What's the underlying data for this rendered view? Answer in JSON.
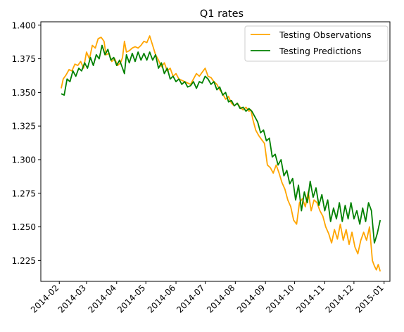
{
  "chart_data": {
    "type": "line",
    "title": "Q1 rates",
    "xlabel": "",
    "ylabel": "",
    "xlim": [
      "2014-01-13",
      "2015-01-07"
    ],
    "ylim": [
      1.2095,
      1.4025
    ],
    "x_ticks": [
      "2014-02",
      "2014-03",
      "2014-04",
      "2014-05",
      "2014-06",
      "2014-07",
      "2014-08",
      "2014-09",
      "2014-10",
      "2014-11",
      "2014-12",
      "2015-01"
    ],
    "y_ticks": [
      "1.225",
      "1.250",
      "1.275",
      "1.300",
      "1.325",
      "1.350",
      "1.375",
      "1.400"
    ],
    "grid": false,
    "legend_position": "top-right",
    "series": [
      {
        "name": "Testing Observations",
        "color": "#ffa500",
        "points": [
          [
            "2014-02-03",
            1.353
          ],
          [
            "2014-02-05",
            1.36
          ],
          [
            "2014-02-08",
            1.363
          ],
          [
            "2014-02-11",
            1.367
          ],
          [
            "2014-02-14",
            1.366
          ],
          [
            "2014-02-17",
            1.371
          ],
          [
            "2014-02-20",
            1.37
          ],
          [
            "2014-02-23",
            1.373
          ],
          [
            "2014-02-26",
            1.368
          ],
          [
            "2014-03-01",
            1.38
          ],
          [
            "2014-03-04",
            1.375
          ],
          [
            "2014-03-07",
            1.385
          ],
          [
            "2014-03-10",
            1.383
          ],
          [
            "2014-03-13",
            1.39
          ],
          [
            "2014-03-16",
            1.391
          ],
          [
            "2014-03-19",
            1.388
          ],
          [
            "2014-03-21",
            1.378
          ],
          [
            "2014-03-24",
            1.379
          ],
          [
            "2014-03-27",
            1.373
          ],
          [
            "2014-03-30",
            1.375
          ],
          [
            "2014-04-02",
            1.37
          ],
          [
            "2014-04-05",
            1.372
          ],
          [
            "2014-04-07",
            1.376
          ],
          [
            "2014-04-09",
            1.388
          ],
          [
            "2014-04-11",
            1.38
          ],
          [
            "2014-04-14",
            1.381
          ],
          [
            "2014-04-17",
            1.383
          ],
          [
            "2014-04-20",
            1.384
          ],
          [
            "2014-04-23",
            1.383
          ],
          [
            "2014-04-26",
            1.385
          ],
          [
            "2014-04-29",
            1.388
          ],
          [
            "2014-05-02",
            1.387
          ],
          [
            "2014-05-05",
            1.392
          ],
          [
            "2014-05-08",
            1.385
          ],
          [
            "2014-05-11",
            1.378
          ],
          [
            "2014-05-14",
            1.374
          ],
          [
            "2014-05-17",
            1.369
          ],
          [
            "2014-05-20",
            1.372
          ],
          [
            "2014-05-23",
            1.366
          ],
          [
            "2014-05-26",
            1.368
          ],
          [
            "2014-05-29",
            1.362
          ],
          [
            "2014-06-01",
            1.364
          ],
          [
            "2014-06-04",
            1.36
          ],
          [
            "2014-06-07",
            1.359
          ],
          [
            "2014-06-10",
            1.358
          ],
          [
            "2014-06-13",
            1.357
          ],
          [
            "2014-06-16",
            1.356
          ],
          [
            "2014-06-19",
            1.36
          ],
          [
            "2014-06-22",
            1.364
          ],
          [
            "2014-06-25",
            1.362
          ],
          [
            "2014-06-28",
            1.365
          ],
          [
            "2014-07-01",
            1.368
          ],
          [
            "2014-07-04",
            1.362
          ],
          [
            "2014-07-07",
            1.361
          ],
          [
            "2014-07-10",
            1.358
          ],
          [
            "2014-07-13",
            1.356
          ],
          [
            "2014-07-16",
            1.352
          ],
          [
            "2014-07-19",
            1.349
          ],
          [
            "2014-07-22",
            1.345
          ],
          [
            "2014-07-25",
            1.347
          ],
          [
            "2014-07-28",
            1.342
          ],
          [
            "2014-07-31",
            1.34
          ],
          [
            "2014-08-03",
            1.342
          ],
          [
            "2014-08-06",
            1.339
          ],
          [
            "2014-08-09",
            1.337
          ],
          [
            "2014-08-12",
            1.339
          ],
          [
            "2014-08-15",
            1.336
          ],
          [
            "2014-08-17",
            1.337
          ],
          [
            "2014-08-19",
            1.33
          ],
          [
            "2014-08-22",
            1.322
          ],
          [
            "2014-08-25",
            1.318
          ],
          [
            "2014-08-28",
            1.315
          ],
          [
            "2014-08-31",
            1.312
          ],
          [
            "2014-09-03",
            1.296
          ],
          [
            "2014-09-06",
            1.294
          ],
          [
            "2014-09-09",
            1.29
          ],
          [
            "2014-09-12",
            1.296
          ],
          [
            "2014-09-15",
            1.29
          ],
          [
            "2014-09-18",
            1.283
          ],
          [
            "2014-09-21",
            1.278
          ],
          [
            "2014-09-24",
            1.27
          ],
          [
            "2014-09-27",
            1.265
          ],
          [
            "2014-09-30",
            1.255
          ],
          [
            "2014-10-03",
            1.252
          ],
          [
            "2014-10-06",
            1.268
          ],
          [
            "2014-10-09",
            1.271
          ],
          [
            "2014-10-12",
            1.265
          ],
          [
            "2014-10-15",
            1.276
          ],
          [
            "2014-10-18",
            1.262
          ],
          [
            "2014-10-21",
            1.27
          ],
          [
            "2014-10-24",
            1.268
          ],
          [
            "2014-10-27",
            1.262
          ],
          [
            "2014-10-30",
            1.258
          ],
          [
            "2014-11-02",
            1.25
          ],
          [
            "2014-11-05",
            1.245
          ],
          [
            "2014-11-08",
            1.238
          ],
          [
            "2014-11-11",
            1.248
          ],
          [
            "2014-11-14",
            1.241
          ],
          [
            "2014-11-17",
            1.252
          ],
          [
            "2014-11-20",
            1.24
          ],
          [
            "2014-11-23",
            1.248
          ],
          [
            "2014-11-26",
            1.237
          ],
          [
            "2014-11-29",
            1.246
          ],
          [
            "2014-12-02",
            1.235
          ],
          [
            "2014-12-05",
            1.23
          ],
          [
            "2014-12-08",
            1.24
          ],
          [
            "2014-12-11",
            1.246
          ],
          [
            "2014-12-14",
            1.24
          ],
          [
            "2014-12-17",
            1.25
          ],
          [
            "2014-12-20",
            1.225
          ],
          [
            "2014-12-22",
            1.221
          ],
          [
            "2014-12-24",
            1.218
          ],
          [
            "2014-12-26",
            1.222
          ],
          [
            "2014-12-28",
            1.217
          ]
        ]
      },
      {
        "name": "Testing Predictions",
        "color": "#008000",
        "points": [
          [
            "2014-02-03",
            1.349
          ],
          [
            "2014-02-06",
            1.348
          ],
          [
            "2014-02-09",
            1.36
          ],
          [
            "2014-02-12",
            1.358
          ],
          [
            "2014-02-15",
            1.366
          ],
          [
            "2014-02-18",
            1.362
          ],
          [
            "2014-02-21",
            1.368
          ],
          [
            "2014-02-24",
            1.366
          ],
          [
            "2014-02-27",
            1.372
          ],
          [
            "2014-03-02",
            1.368
          ],
          [
            "2014-03-05",
            1.376
          ],
          [
            "2014-03-08",
            1.37
          ],
          [
            "2014-03-11",
            1.378
          ],
          [
            "2014-03-14",
            1.375
          ],
          [
            "2014-03-17",
            1.385
          ],
          [
            "2014-03-20",
            1.378
          ],
          [
            "2014-03-23",
            1.382
          ],
          [
            "2014-03-26",
            1.374
          ],
          [
            "2014-03-29",
            1.376
          ],
          [
            "2014-04-01",
            1.37
          ],
          [
            "2014-04-04",
            1.374
          ],
          [
            "2014-04-07",
            1.368
          ],
          [
            "2014-04-09",
            1.364
          ],
          [
            "2014-04-11",
            1.378
          ],
          [
            "2014-04-14",
            1.372
          ],
          [
            "2014-04-17",
            1.379
          ],
          [
            "2014-04-20",
            1.373
          ],
          [
            "2014-04-23",
            1.38
          ],
          [
            "2014-04-26",
            1.374
          ],
          [
            "2014-04-29",
            1.379
          ],
          [
            "2014-05-02",
            1.374
          ],
          [
            "2014-05-05",
            1.38
          ],
          [
            "2014-05-08",
            1.374
          ],
          [
            "2014-05-11",
            1.378
          ],
          [
            "2014-05-14",
            1.368
          ],
          [
            "2014-05-17",
            1.372
          ],
          [
            "2014-05-20",
            1.364
          ],
          [
            "2014-05-23",
            1.368
          ],
          [
            "2014-05-26",
            1.36
          ],
          [
            "2014-05-29",
            1.362
          ],
          [
            "2014-06-01",
            1.358
          ],
          [
            "2014-06-04",
            1.36
          ],
          [
            "2014-06-07",
            1.356
          ],
          [
            "2014-06-10",
            1.358
          ],
          [
            "2014-06-13",
            1.354
          ],
          [
            "2014-06-16",
            1.355
          ],
          [
            "2014-06-19",
            1.358
          ],
          [
            "2014-06-22",
            1.353
          ],
          [
            "2014-06-25",
            1.358
          ],
          [
            "2014-06-28",
            1.357
          ],
          [
            "2014-07-01",
            1.362
          ],
          [
            "2014-07-04",
            1.36
          ],
          [
            "2014-07-07",
            1.356
          ],
          [
            "2014-07-10",
            1.358
          ],
          [
            "2014-07-13",
            1.352
          ],
          [
            "2014-07-16",
            1.354
          ],
          [
            "2014-07-19",
            1.348
          ],
          [
            "2014-07-22",
            1.35
          ],
          [
            "2014-07-25",
            1.343
          ],
          [
            "2014-07-28",
            1.344
          ],
          [
            "2014-07-31",
            1.34
          ],
          [
            "2014-08-03",
            1.342
          ],
          [
            "2014-08-06",
            1.338
          ],
          [
            "2014-08-09",
            1.339
          ],
          [
            "2014-08-12",
            1.336
          ],
          [
            "2014-08-15",
            1.338
          ],
          [
            "2014-08-18",
            1.336
          ],
          [
            "2014-08-21",
            1.332
          ],
          [
            "2014-08-24",
            1.328
          ],
          [
            "2014-08-27",
            1.32
          ],
          [
            "2014-08-30",
            1.322
          ],
          [
            "2014-09-02",
            1.314
          ],
          [
            "2014-09-05",
            1.316
          ],
          [
            "2014-09-08",
            1.302
          ],
          [
            "2014-09-11",
            1.304
          ],
          [
            "2014-09-14",
            1.296
          ],
          [
            "2014-09-17",
            1.3
          ],
          [
            "2014-09-20",
            1.288
          ],
          [
            "2014-09-23",
            1.292
          ],
          [
            "2014-09-26",
            1.282
          ],
          [
            "2014-09-29",
            1.286
          ],
          [
            "2014-10-02",
            1.27
          ],
          [
            "2014-10-05",
            1.281
          ],
          [
            "2014-10-08",
            1.262
          ],
          [
            "2014-10-11",
            1.276
          ],
          [
            "2014-10-14",
            1.268
          ],
          [
            "2014-10-17",
            1.284
          ],
          [
            "2014-10-20",
            1.272
          ],
          [
            "2014-10-23",
            1.279
          ],
          [
            "2014-10-26",
            1.266
          ],
          [
            "2014-10-29",
            1.274
          ],
          [
            "2014-11-01",
            1.262
          ],
          [
            "2014-11-04",
            1.27
          ],
          [
            "2014-11-07",
            1.254
          ],
          [
            "2014-11-10",
            1.264
          ],
          [
            "2014-11-13",
            1.256
          ],
          [
            "2014-11-16",
            1.268
          ],
          [
            "2014-11-19",
            1.254
          ],
          [
            "2014-11-22",
            1.266
          ],
          [
            "2014-11-25",
            1.256
          ],
          [
            "2014-11-28",
            1.268
          ],
          [
            "2014-12-01",
            1.256
          ],
          [
            "2014-12-04",
            1.262
          ],
          [
            "2014-12-07",
            1.252
          ],
          [
            "2014-12-10",
            1.264
          ],
          [
            "2014-12-13",
            1.254
          ],
          [
            "2014-12-16",
            1.268
          ],
          [
            "2014-12-19",
            1.262
          ],
          [
            "2014-12-22",
            1.238
          ],
          [
            "2014-12-25",
            1.245
          ],
          [
            "2014-12-28",
            1.255
          ]
        ]
      }
    ]
  }
}
